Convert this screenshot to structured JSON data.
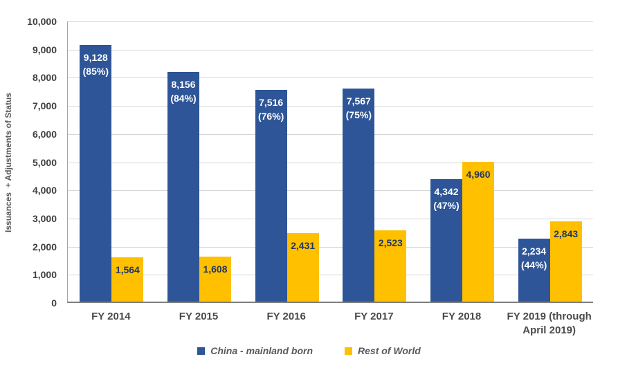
{
  "chart_data": {
    "type": "bar",
    "title": "",
    "xlabel": "",
    "ylabel": "Issuances  + Adjustments of Status",
    "ylim": [
      0,
      10000
    ],
    "ytick_step": 1000,
    "grid": true,
    "legend_position": "bottom",
    "categories": [
      "FY 2014",
      "FY 2015",
      "FY 2016",
      "FY 2017",
      "FY 2018",
      "FY 2019 (through April 2019)"
    ],
    "series": [
      {
        "name": "China - mainland born",
        "color": "#2e5597",
        "label_color": "#ffffff",
        "values": [
          9128,
          8156,
          7516,
          7567,
          4342,
          2234
        ],
        "pct_labels": [
          "(85%)",
          "(84%)",
          "(76%)",
          "(75%)",
          "(47%)",
          "(44%)"
        ]
      },
      {
        "name": "Rest of World",
        "color": "#ffc000",
        "label_color": "#1f3864",
        "values": [
          1564,
          1608,
          2431,
          2523,
          4960,
          2843
        ]
      }
    ],
    "colors": {
      "gridline": "#d6d6d6",
      "axis_line": "#7f7f7f",
      "tick_label": "#404040",
      "category_label": "#4a4a4a",
      "legend_text": "#595959"
    }
  }
}
